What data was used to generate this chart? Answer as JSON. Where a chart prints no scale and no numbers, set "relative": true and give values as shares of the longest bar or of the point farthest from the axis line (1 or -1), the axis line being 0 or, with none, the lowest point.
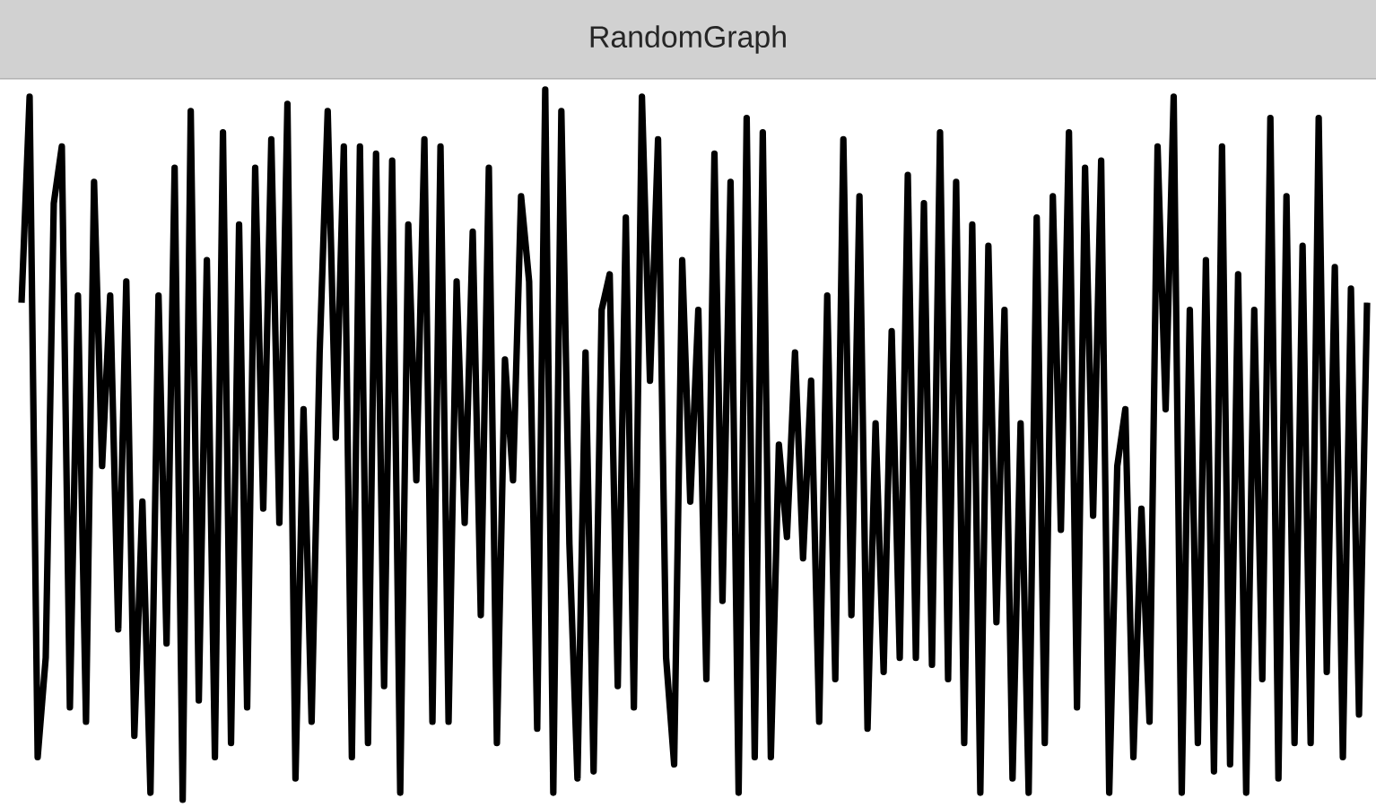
{
  "chart_data": {
    "type": "line",
    "title": "RandomGraph",
    "relative": true,
    "color": "#000000",
    "categories": [
      null,
      null,
      null,
      null,
      null,
      null,
      null,
      null,
      null,
      null,
      null,
      null,
      null,
      null,
      null,
      null,
      null,
      null,
      null,
      null,
      null,
      null,
      null,
      null,
      null,
      null,
      null,
      null,
      null,
      null,
      null,
      null,
      null,
      null,
      null,
      null,
      null,
      null,
      null,
      null,
      null,
      null,
      null,
      null,
      null,
      null,
      null,
      null,
      null,
      null,
      null,
      null,
      null,
      null,
      null,
      null,
      null,
      null,
      null,
      null,
      null,
      null,
      null,
      null,
      null,
      null,
      null,
      null,
      null,
      null,
      null,
      null,
      null,
      null,
      null,
      null,
      null,
      null,
      null,
      null,
      null,
      null,
      null,
      null,
      null,
      null,
      null,
      null,
      null,
      null,
      null,
      null,
      null,
      null,
      null,
      null,
      null,
      null,
      null,
      null,
      null,
      null,
      null,
      null,
      null,
      null,
      null,
      null,
      null,
      null,
      null,
      null,
      null,
      null,
      null,
      null,
      null,
      null,
      null,
      null,
      null,
      null,
      null,
      null,
      null,
      null,
      null,
      null,
      null,
      null,
      null,
      null,
      null,
      null,
      null,
      null,
      null,
      null,
      null,
      null,
      null,
      null,
      null,
      null,
      null,
      null,
      null,
      null,
      null,
      null,
      null,
      null,
      null,
      null,
      null,
      null,
      null,
      null,
      null,
      null,
      null,
      null,
      null,
      null,
      null,
      null,
      null,
      null
    ],
    "values": [
      0.7,
      0.99,
      0.06,
      0.2,
      0.84,
      0.92,
      0.13,
      0.71,
      0.11,
      0.87,
      0.47,
      0.71,
      0.24,
      0.73,
      0.09,
      0.42,
      0.01,
      0.71,
      0.22,
      0.89,
      0,
      0.97,
      0.14,
      0.76,
      0.06,
      0.94,
      0.08,
      0.81,
      0.13,
      0.89,
      0.41,
      0.93,
      0.39,
      0.98,
      0.03,
      0.55,
      0.11,
      0.63,
      0.97,
      0.51,
      0.92,
      0.06,
      0.92,
      0.08,
      0.91,
      0.16,
      0.9,
      0.01,
      0.81,
      0.45,
      0.93,
      0.11,
      0.92,
      0.11,
      0.73,
      0.39,
      0.8,
      0.26,
      0.89,
      0.08,
      0.62,
      0.45,
      0.85,
      0.73,
      0.1,
      1,
      0.01,
      0.97,
      0.36,
      0.03,
      0.63,
      0.04,
      0.69,
      0.74,
      0.16,
      0.82,
      0.13,
      0.99,
      0.59,
      0.93,
      0.2,
      0.05,
      0.76,
      0.42,
      0.69,
      0.17,
      0.91,
      0.28,
      0.87,
      0.01,
      0.96,
      0.06,
      0.94,
      0.06,
      0.5,
      0.37,
      0.63,
      0.34,
      0.59,
      0.11,
      0.71,
      0.17,
      0.93,
      0.26,
      0.85,
      0.1,
      0.53,
      0.18,
      0.66,
      0.2,
      0.88,
      0.2,
      0.84,
      0.19,
      0.94,
      0.17,
      0.87,
      0.08,
      0.81,
      0.01,
      0.78,
      0.25,
      0.69,
      0.03,
      0.53,
      0.01,
      0.82,
      0.08,
      0.85,
      0.38,
      0.94,
      0.13,
      0.89,
      0.4,
      0.9,
      0.01,
      0.47,
      0.55,
      0.06,
      0.41,
      0.11,
      0.92,
      0.55,
      0.99,
      0.01,
      0.69,
      0.08,
      0.76,
      0.04,
      0.92,
      0.05,
      0.74,
      0.01,
      0.69,
      0.17,
      0.96,
      0.03,
      0.85,
      0.08,
      0.78,
      0.08,
      0.96,
      0.18,
      0.75,
      0.06,
      0.72,
      0.12,
      0.7
    ]
  }
}
